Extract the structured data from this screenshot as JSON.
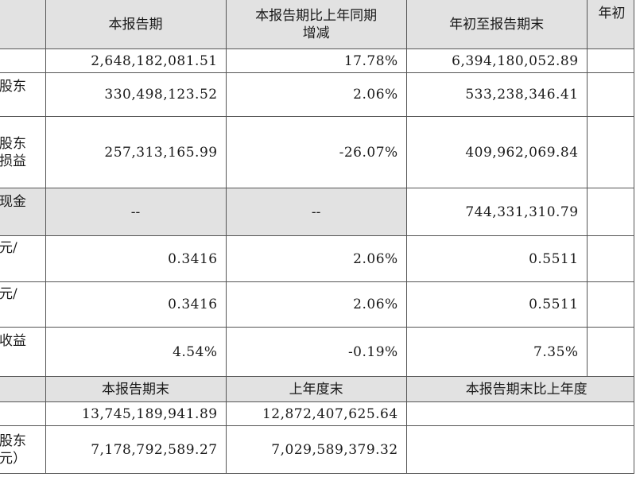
{
  "header1": {
    "c1": "本报告期",
    "c2_line1": "本报告期比上年同期",
    "c2_line2": "增减",
    "c3": "年初至报告期末",
    "c4": "年初"
  },
  "rows": [
    {
      "label": "",
      "v1": "2,648,182,081.51",
      "v2": "17.78%",
      "v3": "6,394,180,052.89"
    },
    {
      "label": "股东",
      "v1": "330,498,123.52",
      "v2": "2.06%",
      "v3": "533,238,346.41"
    },
    {
      "label_line1": "股东",
      "label_line2": "损益",
      "v1": "257,313,165.99",
      "v2": "-26.07%",
      "v3": "409,962,069.84"
    },
    {
      "label": "现金",
      "v1": "--",
      "v2": "--",
      "v3": "744,331,310.79"
    },
    {
      "label": "元/",
      "v1": "0.3416",
      "v2": "2.06%",
      "v3": "0.5511"
    },
    {
      "label": "元/",
      "v1": "0.3416",
      "v2": "2.06%",
      "v3": "0.5511"
    },
    {
      "label": "收益",
      "v1": "4.54%",
      "v2": "-0.19%",
      "v3": "7.35%"
    }
  ],
  "header2": {
    "c1": "本报告期末",
    "c2": "上年度末",
    "c3": "本报告期末比上年度"
  },
  "rows2": [
    {
      "label": "",
      "v1": "13,745,189,941.89",
      "v2": "12,872,407,625.64"
    },
    {
      "label_line1": "股东",
      "label_line2": "元）",
      "v1": "7,178,792,589.27",
      "v2": "7,029,589,379.32"
    }
  ]
}
